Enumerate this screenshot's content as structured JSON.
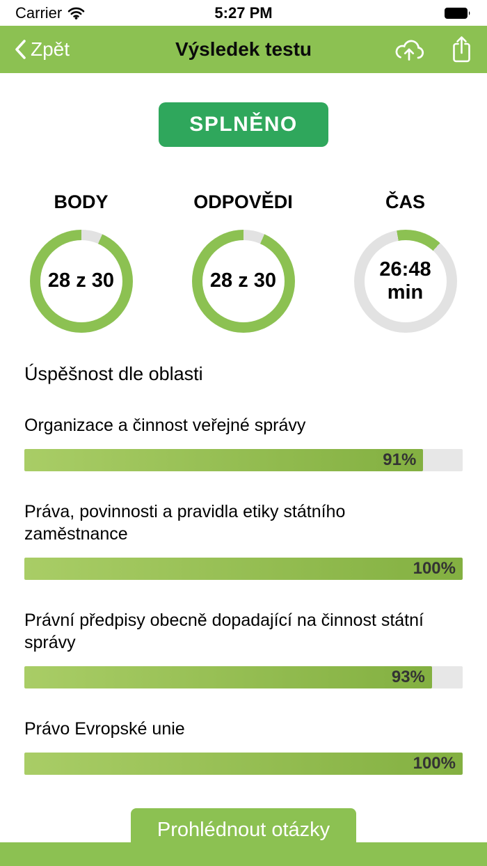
{
  "status_bar": {
    "carrier": "Carrier",
    "time": "5:27 PM"
  },
  "nav": {
    "back_label": "Zpět",
    "title": "Výsledek testu"
  },
  "badge": {
    "label": "SPLNĚNO"
  },
  "colors": {
    "nav_green": "#8CC152",
    "badge_green": "#2FA75C",
    "ring_green": "#8CC152",
    "ring_track": "#E2E2E2",
    "bar_fill_start": "#A9CD66",
    "bar_fill_end": "#83B041",
    "bar_track": "#E7E7E7",
    "bar_pct_text": "#333333"
  },
  "rings": [
    {
      "label": "BODY",
      "value": "28 z 30",
      "arc_start_deg": 24,
      "arc_sweep_deg": 336
    },
    {
      "label": "ODPOVĚDI",
      "value": "28 z 30",
      "arc_start_deg": 24,
      "arc_sweep_deg": 336
    },
    {
      "label": "ČAS",
      "value": "26:48",
      "value2": "min",
      "arc_start_deg": -10,
      "arc_sweep_deg": 52
    }
  ],
  "section": {
    "title": "Úspěšnost dle oblasti"
  },
  "bars": [
    {
      "label": "Organizace a činnost veřejné správy",
      "pct": 91,
      "pct_label": "91%"
    },
    {
      "label": "Práva, povinnosti a pravidla etiky státního zaměstnance",
      "pct": 100,
      "pct_label": "100%"
    },
    {
      "label": "Právní předpisy obecně dopadající na činnost státní správy",
      "pct": 93,
      "pct_label": "93%"
    },
    {
      "label": "Právo Evropské unie",
      "pct": 100,
      "pct_label": "100%"
    }
  ],
  "footer": {
    "review_button": "Prohlédnout otázky"
  }
}
